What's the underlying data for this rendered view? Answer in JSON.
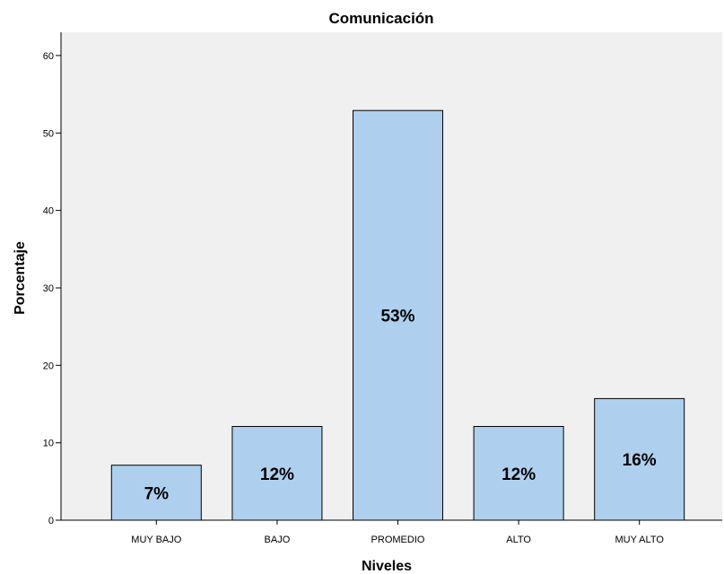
{
  "chart_data": {
    "type": "bar",
    "title": "Comunicación",
    "xlabel": "Niveles",
    "ylabel": "Porcentaje",
    "categories": [
      "MUY BAJO",
      "BAJO",
      "PROMEDIO",
      "ALTO",
      "MUY ALTO"
    ],
    "values": [
      7.1,
      12.1,
      52.9,
      12.1,
      15.7
    ],
    "data_labels": [
      "7%",
      "12%",
      "53%",
      "12%",
      "16%"
    ],
    "yticks": [
      0,
      10,
      20,
      30,
      40,
      50,
      60
    ],
    "ylim": [
      0,
      63
    ],
    "grid": false,
    "legend": "none",
    "colors": {
      "plot_background": "#f0f0f0",
      "bar_fill": "#aed0ee",
      "bar_stroke": "#000000",
      "axis": "#000000"
    }
  }
}
